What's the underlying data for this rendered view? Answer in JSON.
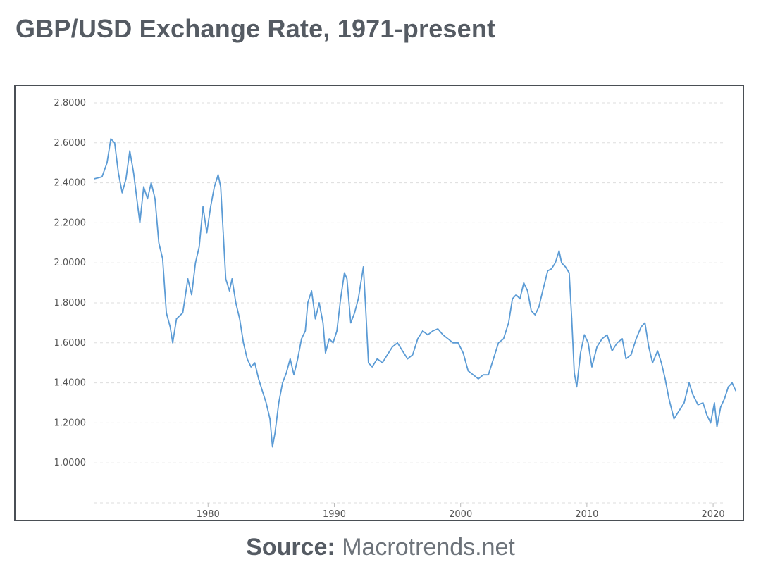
{
  "page": {
    "title": "GBP/USD Exchange Rate, 1971-present",
    "source_label": "Source:",
    "source_name": "Macrotrends.net"
  },
  "colors": {
    "line": "#5b9bd5",
    "grid": "#dddddd",
    "text": "#555b63",
    "frame": "#4a4f55"
  },
  "chart_data": {
    "type": "line",
    "title": "GBP/USD Exchange Rate, 1971-present",
    "xlabel": "",
    "ylabel": "",
    "xlim": [
      1971,
      2021
    ],
    "ylim": [
      0.8,
      2.8
    ],
    "y_ticks": [
      {
        "value": 2.8,
        "label": "2.8000"
      },
      {
        "value": 2.6,
        "label": "2.6000"
      },
      {
        "value": 2.4,
        "label": "2.4000"
      },
      {
        "value": 2.2,
        "label": "2.2000"
      },
      {
        "value": 2.0,
        "label": "2.0000"
      },
      {
        "value": 1.8,
        "label": "1.8000"
      },
      {
        "value": 1.6,
        "label": "1.6000"
      },
      {
        "value": 1.4,
        "label": "1.4000"
      },
      {
        "value": 1.2,
        "label": "1.2000"
      },
      {
        "value": 1.0,
        "label": "1.0000"
      }
    ],
    "x_ticks": [
      {
        "value": 1980,
        "label": "1980"
      },
      {
        "value": 1990,
        "label": "1990"
      },
      {
        "value": 2000,
        "label": "2000"
      },
      {
        "value": 2010,
        "label": "2010"
      },
      {
        "value": 2020,
        "label": "2020"
      }
    ],
    "grid": true,
    "series": [
      {
        "points": [
          [
            1971.0,
            2.42
          ],
          [
            1971.6,
            2.43
          ],
          [
            1972.0,
            2.5
          ],
          [
            1972.3,
            2.62
          ],
          [
            1972.6,
            2.6
          ],
          [
            1972.9,
            2.45
          ],
          [
            1973.2,
            2.35
          ],
          [
            1973.5,
            2.42
          ],
          [
            1973.8,
            2.56
          ],
          [
            1974.1,
            2.45
          ],
          [
            1974.4,
            2.3
          ],
          [
            1974.6,
            2.2
          ],
          [
            1974.9,
            2.38
          ],
          [
            1975.2,
            2.32
          ],
          [
            1975.5,
            2.4
          ],
          [
            1975.8,
            2.32
          ],
          [
            1976.1,
            2.1
          ],
          [
            1976.4,
            2.02
          ],
          [
            1976.7,
            1.75
          ],
          [
            1977.0,
            1.68
          ],
          [
            1977.2,
            1.6
          ],
          [
            1977.5,
            1.72
          ],
          [
            1978.0,
            1.75
          ],
          [
            1978.4,
            1.92
          ],
          [
            1978.7,
            1.84
          ],
          [
            1979.0,
            2.0
          ],
          [
            1979.3,
            2.08
          ],
          [
            1979.6,
            2.28
          ],
          [
            1979.9,
            2.15
          ],
          [
            1980.2,
            2.28
          ],
          [
            1980.5,
            2.38
          ],
          [
            1980.8,
            2.44
          ],
          [
            1981.0,
            2.38
          ],
          [
            1981.2,
            2.15
          ],
          [
            1981.4,
            1.92
          ],
          [
            1981.7,
            1.86
          ],
          [
            1981.9,
            1.92
          ],
          [
            1982.2,
            1.8
          ],
          [
            1982.5,
            1.72
          ],
          [
            1982.8,
            1.6
          ],
          [
            1983.1,
            1.52
          ],
          [
            1983.4,
            1.48
          ],
          [
            1983.7,
            1.5
          ],
          [
            1984.0,
            1.42
          ],
          [
            1984.3,
            1.36
          ],
          [
            1984.6,
            1.3
          ],
          [
            1984.9,
            1.22
          ],
          [
            1985.1,
            1.08
          ],
          [
            1985.3,
            1.15
          ],
          [
            1985.6,
            1.3
          ],
          [
            1985.9,
            1.4
          ],
          [
            1986.2,
            1.45
          ],
          [
            1986.5,
            1.52
          ],
          [
            1986.8,
            1.44
          ],
          [
            1987.1,
            1.52
          ],
          [
            1987.4,
            1.62
          ],
          [
            1987.7,
            1.66
          ],
          [
            1987.9,
            1.8
          ],
          [
            1988.2,
            1.86
          ],
          [
            1988.5,
            1.72
          ],
          [
            1988.8,
            1.8
          ],
          [
            1989.1,
            1.7
          ],
          [
            1989.3,
            1.55
          ],
          [
            1989.6,
            1.62
          ],
          [
            1989.9,
            1.6
          ],
          [
            1990.2,
            1.66
          ],
          [
            1990.5,
            1.82
          ],
          [
            1990.8,
            1.95
          ],
          [
            1991.0,
            1.92
          ],
          [
            1991.3,
            1.7
          ],
          [
            1991.6,
            1.75
          ],
          [
            1991.9,
            1.82
          ],
          [
            1992.1,
            1.9
          ],
          [
            1992.3,
            1.98
          ],
          [
            1992.5,
            1.75
          ],
          [
            1992.7,
            1.5
          ],
          [
            1993.0,
            1.48
          ],
          [
            1993.4,
            1.52
          ],
          [
            1993.8,
            1.5
          ],
          [
            1994.2,
            1.54
          ],
          [
            1994.6,
            1.58
          ],
          [
            1995.0,
            1.6
          ],
          [
            1995.4,
            1.56
          ],
          [
            1995.8,
            1.52
          ],
          [
            1996.2,
            1.54
          ],
          [
            1996.6,
            1.62
          ],
          [
            1997.0,
            1.66
          ],
          [
            1997.4,
            1.64
          ],
          [
            1997.8,
            1.66
          ],
          [
            1998.2,
            1.67
          ],
          [
            1998.6,
            1.64
          ],
          [
            1999.0,
            1.62
          ],
          [
            1999.4,
            1.6
          ],
          [
            1999.8,
            1.6
          ],
          [
            2000.2,
            1.55
          ],
          [
            2000.6,
            1.46
          ],
          [
            2001.0,
            1.44
          ],
          [
            2001.4,
            1.42
          ],
          [
            2001.8,
            1.44
          ],
          [
            2002.2,
            1.44
          ],
          [
            2002.6,
            1.52
          ],
          [
            2003.0,
            1.6
          ],
          [
            2003.4,
            1.62
          ],
          [
            2003.8,
            1.7
          ],
          [
            2004.1,
            1.82
          ],
          [
            2004.4,
            1.84
          ],
          [
            2004.7,
            1.82
          ],
          [
            2005.0,
            1.9
          ],
          [
            2005.3,
            1.86
          ],
          [
            2005.6,
            1.76
          ],
          [
            2005.9,
            1.74
          ],
          [
            2006.2,
            1.78
          ],
          [
            2006.5,
            1.86
          ],
          [
            2006.9,
            1.96
          ],
          [
            2007.2,
            1.97
          ],
          [
            2007.5,
            2.0
          ],
          [
            2007.8,
            2.06
          ],
          [
            2008.0,
            2.0
          ],
          [
            2008.3,
            1.98
          ],
          [
            2008.6,
            1.95
          ],
          [
            2008.8,
            1.72
          ],
          [
            2009.0,
            1.45
          ],
          [
            2009.2,
            1.38
          ],
          [
            2009.5,
            1.55
          ],
          [
            2009.8,
            1.64
          ],
          [
            2010.1,
            1.6
          ],
          [
            2010.4,
            1.48
          ],
          [
            2010.8,
            1.58
          ],
          [
            2011.2,
            1.62
          ],
          [
            2011.6,
            1.64
          ],
          [
            2012.0,
            1.56
          ],
          [
            2012.4,
            1.6
          ],
          [
            2012.8,
            1.62
          ],
          [
            2013.1,
            1.52
          ],
          [
            2013.5,
            1.54
          ],
          [
            2013.9,
            1.62
          ],
          [
            2014.3,
            1.68
          ],
          [
            2014.6,
            1.7
          ],
          [
            2014.9,
            1.58
          ],
          [
            2015.2,
            1.5
          ],
          [
            2015.6,
            1.56
          ],
          [
            2015.9,
            1.5
          ],
          [
            2016.2,
            1.42
          ],
          [
            2016.5,
            1.32
          ],
          [
            2016.9,
            1.22
          ],
          [
            2017.3,
            1.26
          ],
          [
            2017.7,
            1.3
          ],
          [
            2018.1,
            1.4
          ],
          [
            2018.4,
            1.34
          ],
          [
            2018.8,
            1.29
          ],
          [
            2019.2,
            1.3
          ],
          [
            2019.5,
            1.24
          ],
          [
            2019.8,
            1.2
          ],
          [
            2020.1,
            1.3
          ],
          [
            2020.3,
            1.18
          ],
          [
            2020.6,
            1.28
          ],
          [
            2020.9,
            1.32
          ],
          [
            2021.2,
            1.38
          ],
          [
            2021.5,
            1.4
          ],
          [
            2021.8,
            1.36
          ]
        ]
      }
    ]
  }
}
